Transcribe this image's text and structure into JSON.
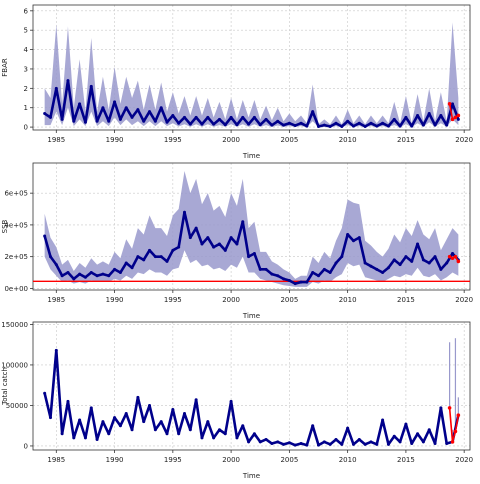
{
  "colors": {
    "series": "#00008b",
    "band": "#9999cc",
    "highlight": "#ff0000",
    "reference": "#ff0000",
    "grid": "#c8c8c8"
  },
  "chart_data": [
    {
      "type": "area",
      "id": "fbar",
      "xlabel": "Time",
      "ylabel": "FBAR",
      "xlim": [
        1983,
        2020.5
      ],
      "ylim": [
        -0.15,
        6.3
      ],
      "xticks": [
        1985,
        1990,
        1995,
        2000,
        2005,
        2010,
        2015,
        2020
      ],
      "xtick_labels": [
        "1985",
        "1990",
        "1995",
        "2000",
        "2005",
        "2010",
        "2015",
        "2020"
      ],
      "yticks": [
        0,
        1,
        2,
        3,
        4,
        5,
        6
      ],
      "ytick_labels": [
        "0",
        "1",
        "2",
        "3",
        "4",
        "5",
        "6"
      ],
      "grid": true,
      "series": [
        {
          "x": [
            1984.0,
            1984.5,
            1985.0,
            1985.5,
            1986.0,
            1986.5,
            1987.0,
            1987.5,
            1988.0,
            1988.5,
            1989.0,
            1989.5,
            1990.0,
            1990.5,
            1991.0,
            1991.5,
            1992.0,
            1992.5,
            1993.0,
            1993.5,
            1994.0,
            1994.5,
            1995.0,
            1995.5,
            1996.0,
            1996.5,
            1997.0,
            1997.5,
            1998.0,
            1998.5,
            1999.0,
            1999.5,
            2000.0,
            2000.5,
            2001.0,
            2001.5,
            2002.0,
            2002.5,
            2003.0,
            2003.5,
            2004.0,
            2004.5,
            2005.0,
            2005.5,
            2006.0,
            2006.5,
            2007.0,
            2007.5,
            2008.0,
            2008.5,
            2009.0,
            2009.5,
            2010.0,
            2010.5,
            2011.0,
            2011.5,
            2012.0,
            2012.5,
            2013.0,
            2013.5,
            2014.0,
            2014.5,
            2015.0,
            2015.5,
            2016.0,
            2016.5,
            2017.0,
            2017.5,
            2018.0,
            2018.5,
            2019.0,
            2019.5
          ],
          "y": [
            0.7,
            0.5,
            2.0,
            0.4,
            2.4,
            0.3,
            1.2,
            0.25,
            2.1,
            0.3,
            1.0,
            0.3,
            1.3,
            0.4,
            1.0,
            0.5,
            0.9,
            0.3,
            0.8,
            0.3,
            1.0,
            0.25,
            0.6,
            0.2,
            0.5,
            0.15,
            0.5,
            0.15,
            0.5,
            0.15,
            0.4,
            0.12,
            0.5,
            0.12,
            0.5,
            0.15,
            0.5,
            0.12,
            0.4,
            0.1,
            0.3,
            0.1,
            0.2,
            0.08,
            0.2,
            0.05,
            0.8,
            0.03,
            0.1,
            0.03,
            0.2,
            0.03,
            0.3,
            0.05,
            0.2,
            0.03,
            0.2,
            0.05,
            0.2,
            0.05,
            0.4,
            0.05,
            0.5,
            0.05,
            0.6,
            0.1,
            0.7,
            0.1,
            0.6,
            0.1,
            1.2,
            0.4
          ],
          "lower": [
            0.1,
            0.1,
            0.8,
            0.1,
            1.0,
            0.05,
            0.4,
            0.05,
            0.8,
            0.05,
            0.3,
            0.05,
            0.5,
            0.1,
            0.4,
            0.1,
            0.3,
            0.05,
            0.3,
            0.05,
            0.3,
            0.05,
            0.2,
            0.03,
            0.15,
            0.02,
            0.15,
            0.02,
            0.15,
            0.02,
            0.1,
            0.02,
            0.15,
            0.02,
            0.15,
            0.02,
            0.15,
            0.02,
            0.1,
            0.01,
            0.08,
            0.01,
            0.05,
            0.01,
            0.05,
            0.0,
            0.3,
            0.0,
            0.02,
            0.0,
            0.05,
            0.0,
            0.1,
            0.0,
            0.05,
            0.0,
            0.05,
            0.0,
            0.05,
            0.0,
            0.1,
            0.0,
            0.15,
            0.0,
            0.2,
            0.02,
            0.25,
            0.02,
            0.2,
            0.02,
            0.4,
            0.1
          ],
          "upper": [
            2.0,
            1.5,
            5.3,
            1.2,
            5.2,
            1.0,
            3.5,
            0.8,
            4.6,
            0.8,
            2.6,
            0.9,
            3.1,
            1.2,
            2.6,
            1.5,
            2.4,
            0.9,
            2.2,
            0.9,
            2.3,
            0.8,
            1.8,
            0.7,
            1.6,
            0.6,
            1.6,
            0.6,
            1.5,
            0.5,
            1.3,
            0.4,
            1.5,
            0.4,
            1.4,
            0.5,
            1.4,
            0.4,
            1.1,
            0.35,
            1.0,
            0.3,
            0.7,
            0.3,
            0.6,
            0.2,
            2.2,
            0.15,
            0.4,
            0.15,
            0.6,
            0.15,
            0.9,
            0.2,
            0.6,
            0.15,
            0.6,
            0.2,
            0.6,
            0.2,
            1.3,
            0.2,
            1.6,
            0.2,
            1.7,
            0.3,
            2.0,
            0.3,
            1.8,
            0.3,
            5.4,
            1.5
          ]
        }
      ],
      "highlight": {
        "x": [
          2018.75,
          2019.0,
          2019.25,
          2019.5
        ],
        "y": [
          1.2,
          0.4,
          0.5,
          0.6
        ]
      }
    },
    {
      "type": "area",
      "id": "ssb",
      "xlabel": "Time",
      "ylabel": "SSB",
      "xlim": [
        1983,
        2020.5
      ],
      "ylim": [
        -10000,
        790000
      ],
      "xticks": [
        1985,
        1990,
        1995,
        2000,
        2005,
        2010,
        2015,
        2020
      ],
      "xtick_labels": [
        "1985",
        "1990",
        "1995",
        "2000",
        "2005",
        "2010",
        "2015",
        "2020"
      ],
      "yticks": [
        0,
        200000,
        400000,
        600000
      ],
      "ytick_labels": [
        "0e+00",
        "2e+05",
        "4e+05",
        "6e+05"
      ],
      "grid": true,
      "reference_line": 45000,
      "series": [
        {
          "x": [
            1984.0,
            1984.5,
            1985.0,
            1985.5,
            1986.0,
            1986.5,
            1987.0,
            1987.5,
            1988.0,
            1988.5,
            1989.0,
            1989.5,
            1990.0,
            1990.5,
            1991.0,
            1991.5,
            1992.0,
            1992.5,
            1993.0,
            1993.5,
            1994.0,
            1994.5,
            1995.0,
            1995.5,
            1996.0,
            1996.5,
            1997.0,
            1997.5,
            1998.0,
            1998.5,
            1999.0,
            1999.5,
            2000.0,
            2000.5,
            2001.0,
            2001.5,
            2002.0,
            2002.5,
            2003.0,
            2003.5,
            2004.0,
            2004.5,
            2005.0,
            2005.5,
            2006.0,
            2006.5,
            2007.0,
            2007.5,
            2008.0,
            2008.5,
            2009.0,
            2009.5,
            2010.0,
            2010.5,
            2011.0,
            2011.5,
            2012.0,
            2012.5,
            2013.0,
            2013.5,
            2014.0,
            2014.5,
            2015.0,
            2015.5,
            2016.0,
            2016.5,
            2017.0,
            2017.5,
            2018.0,
            2018.5,
            2019.0,
            2019.5
          ],
          "y": [
            330000,
            200000,
            150000,
            80000,
            100000,
            60000,
            90000,
            70000,
            100000,
            80000,
            90000,
            80000,
            120000,
            100000,
            160000,
            130000,
            200000,
            180000,
            240000,
            200000,
            200000,
            170000,
            240000,
            260000,
            480000,
            320000,
            380000,
            280000,
            320000,
            260000,
            280000,
            240000,
            320000,
            280000,
            420000,
            200000,
            220000,
            120000,
            120000,
            90000,
            80000,
            60000,
            50000,
            30000,
            40000,
            40000,
            100000,
            80000,
            120000,
            100000,
            160000,
            200000,
            340000,
            300000,
            320000,
            160000,
            140000,
            120000,
            100000,
            130000,
            180000,
            150000,
            200000,
            170000,
            280000,
            180000,
            160000,
            200000,
            120000,
            160000,
            220000,
            180000
          ],
          "lower": [
            200000,
            120000,
            80000,
            40000,
            50000,
            30000,
            40000,
            30000,
            50000,
            40000,
            40000,
            40000,
            60000,
            50000,
            80000,
            60000,
            100000,
            90000,
            120000,
            100000,
            100000,
            80000,
            120000,
            130000,
            240000,
            160000,
            180000,
            140000,
            150000,
            120000,
            130000,
            110000,
            150000,
            130000,
            200000,
            100000,
            100000,
            60000,
            50000,
            40000,
            30000,
            20000,
            15000,
            10000,
            10000,
            10000,
            40000,
            30000,
            50000,
            40000,
            70000,
            90000,
            160000,
            140000,
            150000,
            70000,
            60000,
            50000,
            40000,
            60000,
            80000,
            70000,
            90000,
            80000,
            130000,
            80000,
            70000,
            90000,
            50000,
            70000,
            100000,
            80000
          ],
          "upper": [
            470000,
            320000,
            260000,
            150000,
            180000,
            110000,
            160000,
            130000,
            190000,
            150000,
            170000,
            150000,
            230000,
            190000,
            310000,
            250000,
            380000,
            340000,
            460000,
            380000,
            380000,
            330000,
            460000,
            500000,
            740000,
            600000,
            690000,
            530000,
            600000,
            490000,
            520000,
            450000,
            600000,
            520000,
            690000,
            380000,
            420000,
            230000,
            230000,
            170000,
            150000,
            120000,
            100000,
            60000,
            80000,
            80000,
            200000,
            160000,
            230000,
            190000,
            300000,
            380000,
            560000,
            540000,
            530000,
            300000,
            270000,
            230000,
            200000,
            250000,
            340000,
            290000,
            380000,
            330000,
            430000,
            340000,
            310000,
            380000,
            240000,
            310000,
            380000,
            340000
          ]
        }
      ],
      "highlight": {
        "x": [
          2018.75,
          2019.0,
          2019.25,
          2019.5
        ],
        "y": [
          200000,
          190000,
          200000,
          170000
        ]
      }
    },
    {
      "type": "line",
      "id": "total-catch",
      "xlabel": "Time",
      "ylabel": "Total catch",
      "xlim": [
        1983,
        2020.5
      ],
      "ylim": [
        -5000,
        153000
      ],
      "xticks": [
        1985,
        1990,
        1995,
        2000,
        2005,
        2010,
        2015,
        2020
      ],
      "xtick_labels": [
        "1985",
        "1990",
        "1995",
        "2000",
        "2005",
        "2010",
        "2015",
        "2020"
      ],
      "yticks": [
        0,
        50000,
        100000,
        150000
      ],
      "ytick_labels": [
        "0",
        "50000",
        "100000",
        "150000"
      ],
      "grid": true,
      "series": [
        {
          "x": [
            1984.0,
            1984.5,
            1985.0,
            1985.5,
            1986.0,
            1986.5,
            1987.0,
            1987.5,
            1988.0,
            1988.5,
            1989.0,
            1989.5,
            1990.0,
            1990.5,
            1991.0,
            1991.5,
            1992.0,
            1992.5,
            1993.0,
            1993.5,
            1994.0,
            1994.5,
            1995.0,
            1995.5,
            1996.0,
            1996.5,
            1997.0,
            1997.5,
            1998.0,
            1998.5,
            1999.0,
            1999.5,
            2000.0,
            2000.5,
            2001.0,
            2001.5,
            2002.0,
            2002.5,
            2003.0,
            2003.5,
            2004.0,
            2004.5,
            2005.0,
            2005.5,
            2006.0,
            2006.5,
            2007.0,
            2007.5,
            2008.0,
            2008.5,
            2009.0,
            2009.5,
            2010.0,
            2010.5,
            2011.0,
            2011.5,
            2012.0,
            2012.5,
            2013.0,
            2013.5,
            2014.0,
            2014.5,
            2015.0,
            2015.5,
            2016.0,
            2016.5,
            2017.0,
            2017.5,
            2018.0,
            2018.5,
            2019.0,
            2019.5
          ],
          "y": [
            65000,
            35000,
            118000,
            15000,
            55000,
            10000,
            32000,
            10000,
            47000,
            8000,
            30000,
            15000,
            35000,
            25000,
            40000,
            20000,
            60000,
            30000,
            50000,
            20000,
            30000,
            15000,
            45000,
            15000,
            40000,
            20000,
            57000,
            10000,
            30000,
            10000,
            20000,
            15000,
            55000,
            10000,
            25000,
            5000,
            15000,
            5000,
            8000,
            3000,
            5000,
            2000,
            4000,
            1000,
            3000,
            1000,
            25000,
            1000,
            5000,
            2000,
            8000,
            2000,
            22000,
            2000,
            8000,
            2000,
            5000,
            2000,
            32000,
            2000,
            12000,
            5000,
            27000,
            3000,
            15000,
            5000,
            20000,
            3000,
            47000,
            3000,
            5000,
            38000
          ]
        }
      ],
      "highlight": {
        "x": [
          2018.75,
          2019.0,
          2019.25,
          2019.5
        ],
        "y": [
          47000,
          5000,
          18000,
          38000
        ]
      },
      "highlight_upper": {
        "x": [
          2018.75,
          2019.0,
          2019.25,
          2019.5
        ],
        "y": [
          128000,
          20000,
          133000,
          60000
        ]
      }
    }
  ]
}
